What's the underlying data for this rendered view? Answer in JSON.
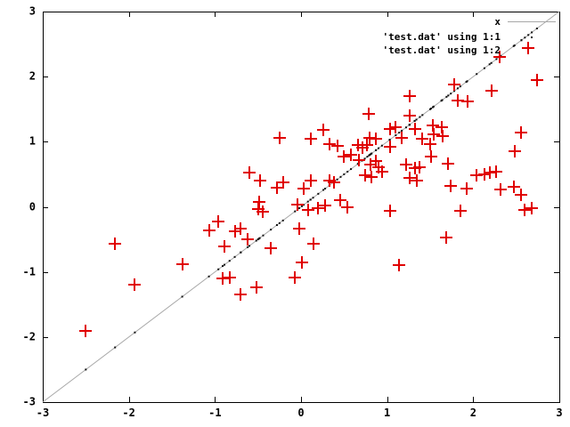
{
  "figure": {
    "background": "#ffffff",
    "border_color": "#000000",
    "marker_color": "#e00000",
    "line_color": "#a8a8a8"
  },
  "legend": {
    "position": "top-right",
    "entries": [
      {
        "label": "x",
        "sample": "gray-line"
      },
      {
        "label": "'test.dat' using 1:1",
        "sample": "dot"
      },
      {
        "label": "'test.dat' using 1:2",
        "sample": "none"
      }
    ]
  },
  "chart_data": {
    "type": "scatter",
    "title": "",
    "xlabel": "",
    "ylabel": "",
    "xlim": [
      -3,
      3
    ],
    "ylim": [
      -3,
      3
    ],
    "x_ticks": [
      "-3",
      "-2",
      "-1",
      "0",
      "1",
      "2",
      "3"
    ],
    "y_ticks": [
      "-3",
      "-2",
      "-1",
      "0",
      "1",
      "2",
      "3"
    ],
    "grid": false,
    "legend_position": "top-right inside",
    "series": [
      {
        "name": "x",
        "type": "line",
        "color": "#a8a8a8",
        "points": [
          [
            -3,
            -3
          ],
          [
            3,
            3
          ]
        ]
      },
      {
        "name": "'test.dat' using 1:1",
        "type": "dots",
        "color": "#111111",
        "derived": "one tiny dot at (x, x) for every x value of the scatter series"
      },
      {
        "name": "'test.dat' using 1:2",
        "type": "points",
        "marker": "plus",
        "color": "#e00000",
        "points": [
          [
            -2.5,
            -1.91
          ],
          [
            -2.16,
            -0.57
          ],
          [
            -1.93,
            -1.2
          ],
          [
            -1.38,
            -0.88
          ],
          [
            -1.07,
            -0.36
          ],
          [
            -0.96,
            -0.22
          ],
          [
            -0.91,
            -1.1
          ],
          [
            -0.89,
            -0.61
          ],
          [
            -0.83,
            -1.09
          ],
          [
            -0.77,
            -0.38
          ],
          [
            -0.7,
            -0.33
          ],
          [
            -0.7,
            -1.35
          ],
          [
            -0.62,
            -0.5
          ],
          [
            -0.6,
            0.53
          ],
          [
            -0.52,
            -1.24
          ],
          [
            -0.5,
            -0.04
          ],
          [
            -0.49,
            0.07
          ],
          [
            -0.48,
            0.4
          ],
          [
            -0.44,
            -0.08
          ],
          [
            -0.35,
            -0.64
          ],
          [
            -0.28,
            0.29
          ],
          [
            -0.25,
            1.06
          ],
          [
            -0.21,
            0.38
          ],
          [
            -0.07,
            -1.08
          ],
          [
            -0.04,
            0.03
          ],
          [
            -0.02,
            -0.33
          ],
          [
            0.01,
            -0.86
          ],
          [
            0.03,
            0.28
          ],
          [
            0.08,
            -0.05
          ],
          [
            0.11,
            0.4
          ],
          [
            0.11,
            1.05
          ],
          [
            0.14,
            -0.57
          ],
          [
            0.2,
            -0.02
          ],
          [
            0.26,
            1.18
          ],
          [
            0.28,
            0.02
          ],
          [
            0.33,
            0.4
          ],
          [
            0.33,
            0.96
          ],
          [
            0.38,
            0.37
          ],
          [
            0.42,
            0.93
          ],
          [
            0.46,
            0.1
          ],
          [
            0.5,
            0.77
          ],
          [
            0.54,
            0.0
          ],
          [
            0.58,
            0.8
          ],
          [
            0.66,
            0.95
          ],
          [
            0.67,
            0.72
          ],
          [
            0.71,
            0.91
          ],
          [
            0.74,
            0.48
          ],
          [
            0.77,
            0.95
          ],
          [
            0.79,
            1.43
          ],
          [
            0.8,
            1.06
          ],
          [
            0.81,
            0.65
          ],
          [
            0.82,
            0.46
          ],
          [
            0.87,
            0.7
          ],
          [
            0.87,
            1.04
          ],
          [
            0.9,
            0.61
          ],
          [
            0.94,
            0.54
          ],
          [
            1.03,
            -0.06
          ],
          [
            1.03,
            0.92
          ],
          [
            1.03,
            1.2
          ],
          [
            1.1,
            1.22
          ],
          [
            1.14,
            -0.89
          ],
          [
            1.17,
            1.06
          ],
          [
            1.22,
            0.65
          ],
          [
            1.26,
            0.44
          ],
          [
            1.26,
            1.4
          ],
          [
            1.26,
            1.7
          ],
          [
            1.32,
            0.59
          ],
          [
            1.32,
            1.2
          ],
          [
            1.34,
            0.4
          ],
          [
            1.38,
            0.61
          ],
          [
            1.41,
            1.05
          ],
          [
            1.5,
            0.97
          ],
          [
            1.51,
            0.77
          ],
          [
            1.53,
            1.25
          ],
          [
            1.54,
            1.11
          ],
          [
            1.63,
            1.22
          ],
          [
            1.64,
            1.09
          ],
          [
            1.69,
            -0.47
          ],
          [
            1.71,
            0.66
          ],
          [
            1.74,
            0.32
          ],
          [
            1.78,
            1.88
          ],
          [
            1.82,
            1.63
          ],
          [
            1.85,
            -0.06
          ],
          [
            1.92,
            0.28
          ],
          [
            1.93,
            1.62
          ],
          [
            2.04,
            0.48
          ],
          [
            2.13,
            0.5
          ],
          [
            2.19,
            0.53
          ],
          [
            2.21,
            1.78
          ],
          [
            2.27,
            0.54
          ],
          [
            2.31,
            2.3
          ],
          [
            2.32,
            0.27
          ],
          [
            2.47,
            0.31
          ],
          [
            2.48,
            0.86
          ],
          [
            2.56,
            0.18
          ],
          [
            2.56,
            1.14
          ],
          [
            2.6,
            -0.05
          ],
          [
            2.64,
            2.44
          ],
          [
            2.68,
            -0.02
          ],
          [
            2.74,
            1.95
          ]
        ]
      }
    ]
  }
}
